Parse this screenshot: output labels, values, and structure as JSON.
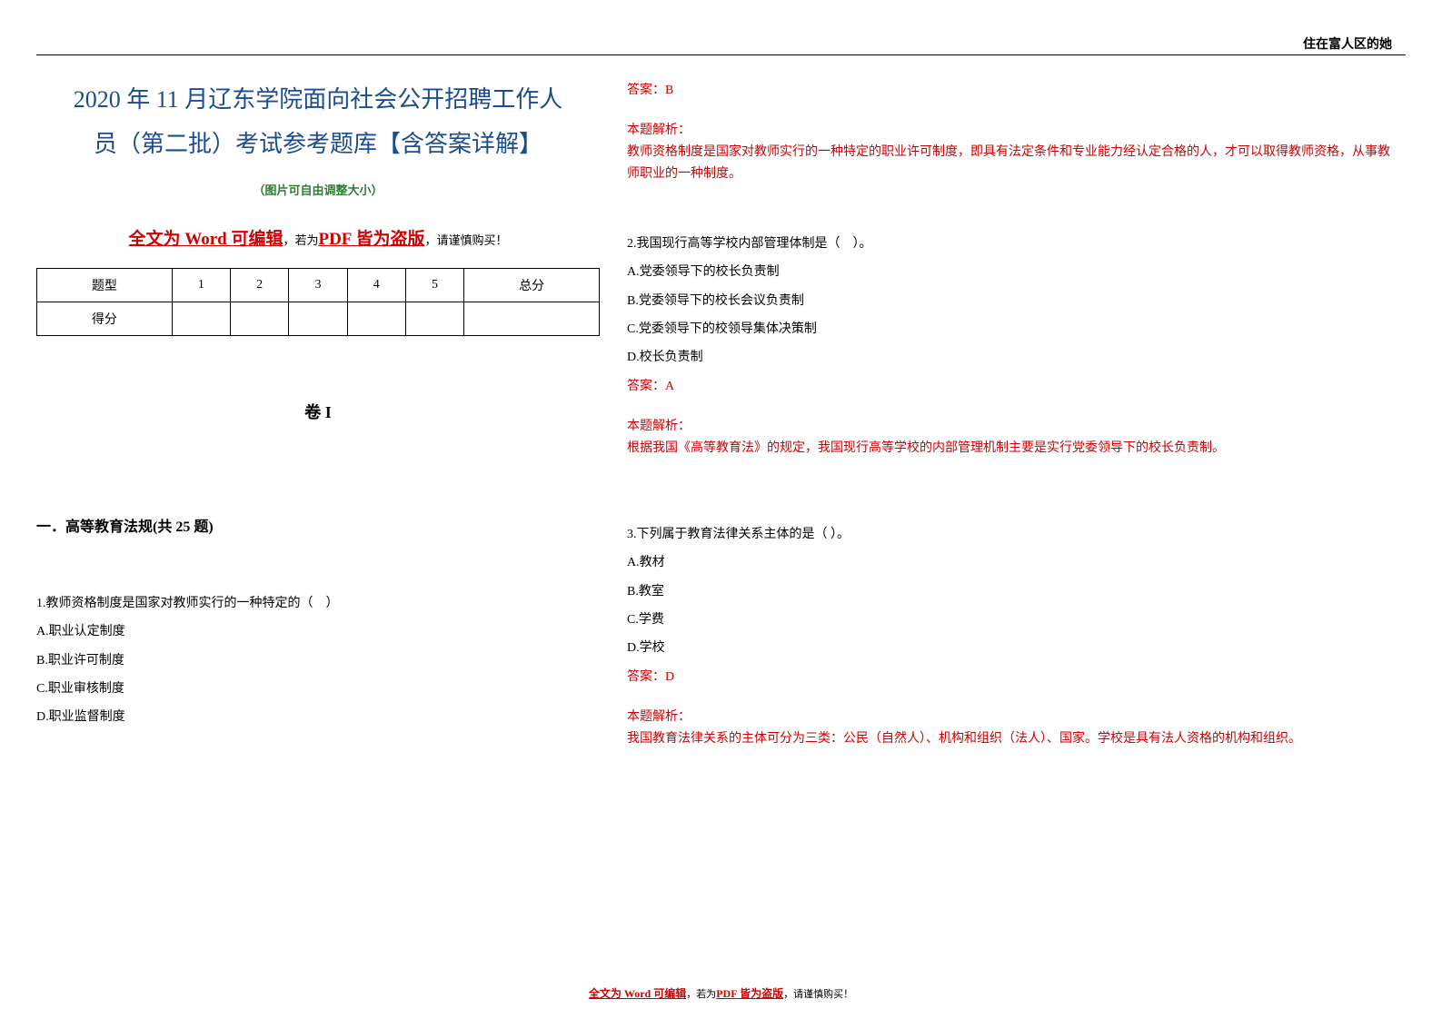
{
  "header": {
    "right_text": "住在富人区的她"
  },
  "title": {
    "line1": "2020 年 11 月辽东学院面向社会公开招聘工作人",
    "line2": "员（第二批）考试参考题库【含答案详解】"
  },
  "subtitle_note": "（图片可自由调整大小）",
  "warning": {
    "prefix_bold": "全文为 Word 可编辑",
    "middle": "，若为",
    "pdf_bold": "PDF 皆为盗版",
    "suffix": "，请谨慎购买！"
  },
  "score_table": {
    "headers": [
      "题型",
      "1",
      "2",
      "3",
      "4",
      "5",
      "总分"
    ],
    "row_label": "得分"
  },
  "volume": "卷 I",
  "section": "一．高等教育法规(共 25 题)",
  "questions": {
    "q1": {
      "stem": "1.教师资格制度是国家对教师实行的一种特定的（　）",
      "options": {
        "a": "A.职业认定制度",
        "b": "B.职业许可制度",
        "c": "C.职业审核制度",
        "d": "D.职业监督制度"
      },
      "answer": "答案：B",
      "analysis_label": "本题解析：",
      "analysis_text": "教师资格制度是国家对教师实行的一种特定的职业许可制度，即具有法定条件和专业能力经认定合格的人，才可以取得教师资格，从事教师职业的一种制度。"
    },
    "q2": {
      "stem": "2.我国现行高等学校内部管理体制是（　）。",
      "options": {
        "a": "A.党委领导下的校长负责制",
        "b": "B.党委领导下的校长会议负责制",
        "c": "C.党委领导下的校领导集体决策制",
        "d": "D.校长负责制"
      },
      "answer": "答案：A",
      "analysis_label": "本题解析：",
      "analysis_text": "根据我国《高等教育法》的规定，我国现行高等学校的内部管理机制主要是实行党委领导下的校长负责制。"
    },
    "q3": {
      "stem": "3.下列属于教育法律关系主体的是（ ）。",
      "options": {
        "a": "A.教材",
        "b": "B.教室",
        "c": "C.学费",
        "d": "D.学校"
      },
      "answer": "答案：D",
      "analysis_label": "本题解析：",
      "analysis_text": "我国教育法律关系的主体可分为三类：公民（自然人）、机构和组织（法人）、国家。学校是具有法人资格的机构和组织。"
    }
  },
  "colors": {
    "title_blue": "#1a4d8f",
    "note_green": "#2e7d32",
    "warning_red": "#cc0000",
    "text_black": "#000000",
    "background": "#ffffff"
  },
  "typography": {
    "title_fontsize": 26,
    "body_fontsize": 14,
    "note_fontsize": 13,
    "section_fontsize": 16,
    "volume_fontsize": 18
  }
}
